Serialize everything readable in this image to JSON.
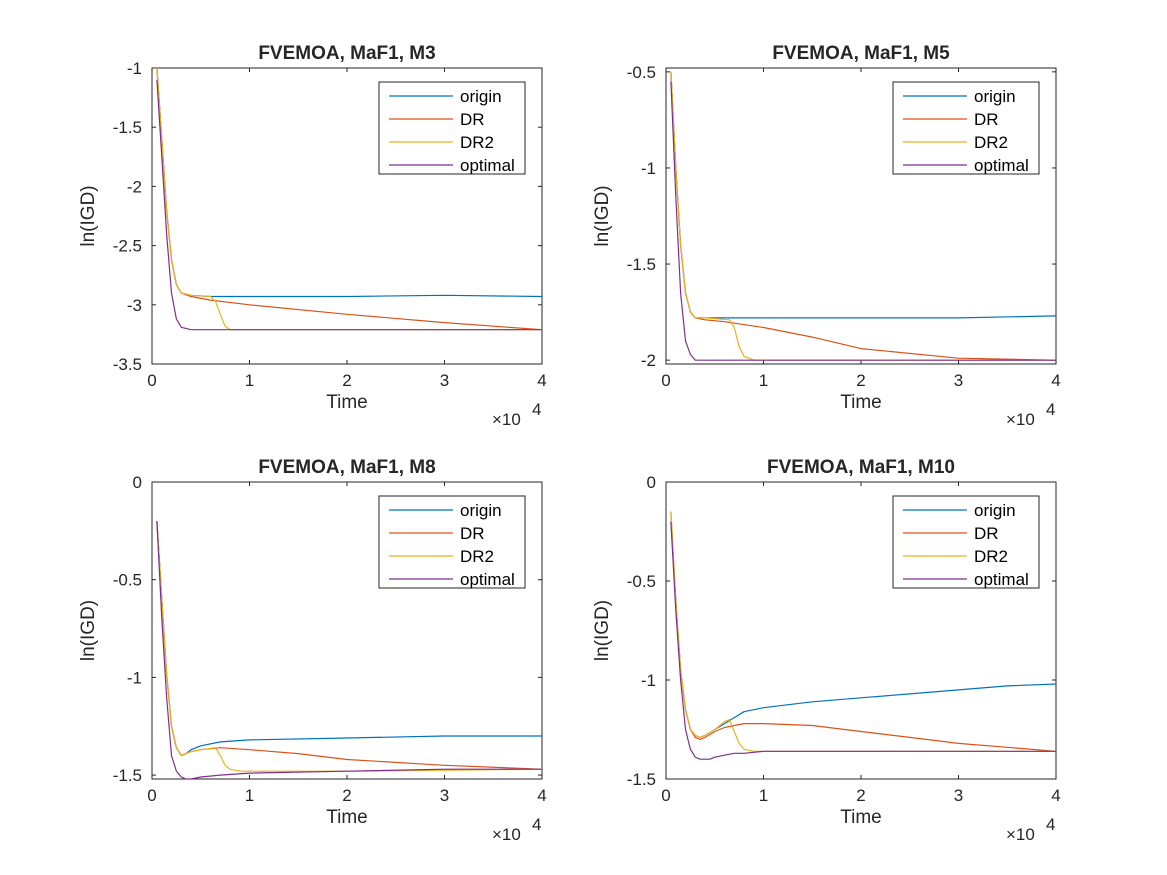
{
  "colors": {
    "origin": "#0072BD",
    "DR": "#D95319",
    "DR2": "#EDB120",
    "optimal": "#7E2F8E",
    "axis": "#262626"
  },
  "chart_data": [
    {
      "type": "line",
      "title": "FVEMOA, MaF1, M3",
      "xlabel": "Time",
      "ylabel": "ln(IGD)",
      "x_exponent_label": "×10",
      "x_exponent_power": "4",
      "xlim": [
        0,
        40000
      ],
      "ylim": [
        -3.5,
        -1
      ],
      "xticks": [
        0,
        10000,
        20000,
        30000,
        40000
      ],
      "xtick_labels": [
        "0",
        "1",
        "2",
        "3",
        "4"
      ],
      "yticks": [
        -1,
        -1.5,
        -2,
        -2.5,
        -3,
        -3.5
      ],
      "ytick_labels": [
        "-1",
        "-1.5",
        "-2",
        "-2.5",
        "-3",
        "-3.5"
      ],
      "legend_position": "top-right",
      "series": [
        {
          "name": "origin",
          "x": [
            500,
            1000,
            1500,
            2000,
            2500,
            3000,
            4000,
            6000,
            10000,
            20000,
            30000,
            40000
          ],
          "values": [
            -1.0,
            -1.6,
            -2.2,
            -2.62,
            -2.83,
            -2.9,
            -2.92,
            -2.93,
            -2.93,
            -2.93,
            -2.92,
            -2.93
          ]
        },
        {
          "name": "DR",
          "x": [
            500,
            1000,
            1500,
            2000,
            2500,
            3000,
            4000,
            6000,
            10000,
            20000,
            30000,
            40000
          ],
          "values": [
            -1.0,
            -1.6,
            -2.2,
            -2.62,
            -2.83,
            -2.9,
            -2.93,
            -2.96,
            -3.0,
            -3.08,
            -3.15,
            -3.21
          ]
        },
        {
          "name": "DR2",
          "x": [
            500,
            1000,
            1500,
            2000,
            2500,
            3000,
            4000,
            6000,
            6500,
            7000,
            7500,
            8000,
            10000,
            20000,
            40000
          ],
          "values": [
            -1.0,
            -1.6,
            -2.2,
            -2.62,
            -2.83,
            -2.9,
            -2.92,
            -2.93,
            -2.97,
            -3.08,
            -3.18,
            -3.21,
            -3.21,
            -3.21,
            -3.21
          ]
        },
        {
          "name": "optimal",
          "x": [
            500,
            1000,
            1500,
            2000,
            2500,
            3000,
            4000,
            5000,
            10000,
            20000,
            30000,
            40000
          ],
          "values": [
            -1.1,
            -1.75,
            -2.4,
            -2.9,
            -3.12,
            -3.19,
            -3.21,
            -3.21,
            -3.21,
            -3.21,
            -3.21,
            -3.21
          ]
        }
      ]
    },
    {
      "type": "line",
      "title": "FVEMOA, MaF1, M5",
      "xlabel": "Time",
      "ylabel": "ln(IGD)",
      "x_exponent_label": "×10",
      "x_exponent_power": "4",
      "xlim": [
        0,
        40000
      ],
      "ylim": [
        -2.02,
        -0.48
      ],
      "xticks": [
        0,
        10000,
        20000,
        30000,
        40000
      ],
      "xtick_labels": [
        "0",
        "1",
        "2",
        "3",
        "4"
      ],
      "yticks": [
        -0.5,
        -1,
        -1.5,
        -2
      ],
      "ytick_labels": [
        "-0.5",
        "-1",
        "-1.5",
        "-2"
      ],
      "legend_position": "top-right",
      "series": [
        {
          "name": "origin",
          "x": [
            500,
            1000,
            1500,
            2000,
            2500,
            3000,
            4000,
            6000,
            10000,
            20000,
            30000,
            40000
          ],
          "values": [
            -0.5,
            -1.0,
            -1.4,
            -1.65,
            -1.75,
            -1.78,
            -1.78,
            -1.78,
            -1.78,
            -1.78,
            -1.78,
            -1.77
          ]
        },
        {
          "name": "DR",
          "x": [
            500,
            1000,
            1500,
            2000,
            2500,
            3000,
            4000,
            6000,
            10000,
            15000,
            20000,
            30000,
            40000
          ],
          "values": [
            -0.5,
            -1.0,
            -1.4,
            -1.65,
            -1.75,
            -1.78,
            -1.79,
            -1.8,
            -1.83,
            -1.88,
            -1.94,
            -1.99,
            -2.0
          ]
        },
        {
          "name": "DR2",
          "x": [
            500,
            1000,
            1500,
            2000,
            2500,
            3000,
            4000,
            6500,
            7000,
            7500,
            8000,
            9000,
            10000,
            20000,
            40000
          ],
          "values": [
            -0.5,
            -1.0,
            -1.4,
            -1.65,
            -1.75,
            -1.78,
            -1.78,
            -1.79,
            -1.83,
            -1.93,
            -1.98,
            -2.0,
            -2.0,
            -2.0,
            -2.0
          ]
        },
        {
          "name": "optimal",
          "x": [
            500,
            1000,
            1500,
            2000,
            2500,
            3000,
            4000,
            5000,
            10000,
            20000,
            30000,
            40000
          ],
          "values": [
            -0.55,
            -1.15,
            -1.65,
            -1.9,
            -1.97,
            -2.0,
            -2.0,
            -2.0,
            -2.0,
            -2.0,
            -2.0,
            -2.0
          ]
        }
      ]
    },
    {
      "type": "line",
      "title": "FVEMOA, MaF1, M8",
      "xlabel": "Time",
      "ylabel": "ln(IGD)",
      "x_exponent_label": "×10",
      "x_exponent_power": "4",
      "xlim": [
        0,
        40000
      ],
      "ylim": [
        -1.52,
        0
      ],
      "xticks": [
        0,
        10000,
        20000,
        30000,
        40000
      ],
      "xtick_labels": [
        "0",
        "1",
        "2",
        "3",
        "4"
      ],
      "yticks": [
        0,
        -0.5,
        -1,
        -1.5
      ],
      "ytick_labels": [
        "0",
        "-0.5",
        "-1",
        "-1.5"
      ],
      "legend_position": "top-right",
      "series": [
        {
          "name": "origin",
          "x": [
            500,
            1000,
            1500,
            2000,
            2500,
            3000,
            3500,
            4000,
            5000,
            7000,
            10000,
            20000,
            30000,
            40000
          ],
          "values": [
            -0.2,
            -0.6,
            -0.98,
            -1.25,
            -1.36,
            -1.4,
            -1.39,
            -1.37,
            -1.35,
            -1.33,
            -1.32,
            -1.31,
            -1.3,
            -1.3
          ]
        },
        {
          "name": "DR",
          "x": [
            500,
            1000,
            1500,
            2000,
            2500,
            3000,
            3500,
            4000,
            5000,
            7000,
            10000,
            15000,
            20000,
            30000,
            40000
          ],
          "values": [
            -0.2,
            -0.6,
            -0.98,
            -1.25,
            -1.36,
            -1.4,
            -1.39,
            -1.38,
            -1.37,
            -1.36,
            -1.37,
            -1.39,
            -1.42,
            -1.45,
            -1.47
          ]
        },
        {
          "name": "DR2",
          "x": [
            500,
            1000,
            1500,
            2000,
            2500,
            3000,
            3500,
            4000,
            5000,
            6500,
            7000,
            7500,
            8000,
            9000,
            10000,
            20000,
            40000
          ],
          "values": [
            -0.2,
            -0.6,
            -0.98,
            -1.25,
            -1.36,
            -1.4,
            -1.39,
            -1.38,
            -1.37,
            -1.36,
            -1.4,
            -1.45,
            -1.47,
            -1.48,
            -1.48,
            -1.48,
            -1.47
          ]
        },
        {
          "name": "optimal",
          "x": [
            500,
            1000,
            1500,
            2000,
            2500,
            3000,
            3500,
            4000,
            5000,
            7000,
            10000,
            20000,
            30000,
            40000
          ],
          "values": [
            -0.2,
            -0.7,
            -1.1,
            -1.4,
            -1.48,
            -1.51,
            -1.52,
            -1.52,
            -1.51,
            -1.5,
            -1.49,
            -1.48,
            -1.47,
            -1.47
          ]
        }
      ]
    },
    {
      "type": "line",
      "title": "FVEMOA, MaF1, M10",
      "xlabel": "Time",
      "ylabel": "ln(IGD)",
      "x_exponent_label": "×10",
      "x_exponent_power": "4",
      "xlim": [
        0,
        40000
      ],
      "ylim": [
        -1.5,
        0
      ],
      "xticks": [
        0,
        10000,
        20000,
        30000,
        40000
      ],
      "xtick_labels": [
        "0",
        "1",
        "2",
        "3",
        "4"
      ],
      "yticks": [
        0,
        -0.5,
        -1,
        -1.5
      ],
      "ytick_labels": [
        "0",
        "-0.5",
        "-1",
        "-1.5"
      ],
      "legend_position": "top-right",
      "series": [
        {
          "name": "origin",
          "x": [
            500,
            1000,
            1500,
            2000,
            2500,
            3000,
            3500,
            4000,
            5000,
            6000,
            7000,
            8000,
            10000,
            15000,
            20000,
            25000,
            30000,
            35000,
            40000
          ],
          "values": [
            -0.2,
            -0.6,
            -0.95,
            -1.15,
            -1.25,
            -1.28,
            -1.29,
            -1.28,
            -1.25,
            -1.22,
            -1.19,
            -1.16,
            -1.14,
            -1.11,
            -1.09,
            -1.07,
            -1.05,
            -1.03,
            -1.02
          ]
        },
        {
          "name": "DR",
          "x": [
            500,
            1000,
            1500,
            2000,
            2500,
            3000,
            3500,
            4000,
            5000,
            6000,
            7000,
            8000,
            10000,
            15000,
            20000,
            25000,
            30000,
            35000,
            40000
          ],
          "values": [
            -0.15,
            -0.6,
            -0.95,
            -1.15,
            -1.25,
            -1.29,
            -1.3,
            -1.29,
            -1.26,
            -1.24,
            -1.23,
            -1.22,
            -1.22,
            -1.23,
            -1.26,
            -1.29,
            -1.32,
            -1.34,
            -1.36
          ]
        },
        {
          "name": "DR2",
          "x": [
            500,
            1000,
            1500,
            2000,
            2500,
            3000,
            3500,
            4000,
            5000,
            6000,
            6500,
            7000,
            7500,
            8000,
            9000,
            10000,
            20000,
            30000,
            40000
          ],
          "values": [
            -0.15,
            -0.6,
            -0.95,
            -1.15,
            -1.25,
            -1.28,
            -1.29,
            -1.28,
            -1.25,
            -1.21,
            -1.2,
            -1.26,
            -1.32,
            -1.35,
            -1.36,
            -1.36,
            -1.36,
            -1.36,
            -1.36
          ]
        },
        {
          "name": "optimal",
          "x": [
            500,
            1000,
            1500,
            2000,
            2500,
            3000,
            3500,
            4000,
            4500,
            5000,
            6000,
            7000,
            8000,
            10000,
            15000,
            20000,
            30000,
            40000
          ],
          "values": [
            -0.2,
            -0.65,
            -1.0,
            -1.25,
            -1.35,
            -1.39,
            -1.4,
            -1.4,
            -1.4,
            -1.39,
            -1.38,
            -1.37,
            -1.37,
            -1.36,
            -1.36,
            -1.36,
            -1.36,
            -1.36
          ]
        }
      ]
    }
  ]
}
